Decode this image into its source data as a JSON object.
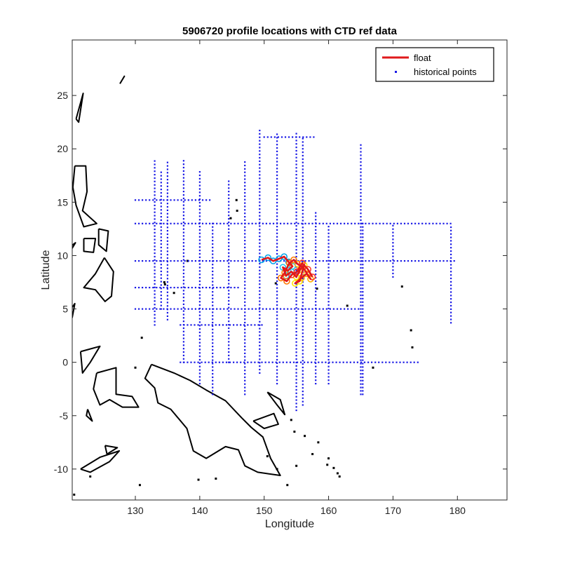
{
  "chart_data": {
    "type": "scatter",
    "title": "5906720 profile locations with CTD ref data",
    "xlabel": "Longitude",
    "ylabel": "Latitude",
    "xlim": [
      120.2,
      187.7
    ],
    "ylim": [
      -12.9,
      30.2
    ],
    "xticks": [
      130,
      140,
      150,
      160,
      170,
      180
    ],
    "yticks": [
      -10,
      -5,
      0,
      5,
      10,
      15,
      20,
      25
    ],
    "grid": false,
    "legend": {
      "placement": "top-right",
      "entries": [
        "float",
        "historical points"
      ]
    },
    "colors": {
      "float": "#e0191b",
      "historical": "#1a1ae6",
      "coast": "#000000",
      "rainbow": [
        "#00a2e8",
        "#22c6ee",
        "#ffe600",
        "#ffb000",
        "#ff7a00",
        "#ff3a2a"
      ]
    },
    "series": [
      {
        "name": "float",
        "mark": "line",
        "points": [
          [
            149.6,
            9.6
          ],
          [
            150.6,
            9.8
          ],
          [
            151.4,
            9.5
          ],
          [
            152.3,
            9.7
          ],
          [
            153.1,
            9.9
          ],
          [
            153.8,
            9.4
          ],
          [
            154.4,
            9.0
          ],
          [
            153.7,
            8.6
          ],
          [
            152.9,
            8.9
          ],
          [
            153.4,
            8.1
          ],
          [
            154.2,
            8.5
          ],
          [
            155.0,
            8.0
          ],
          [
            155.6,
            8.7
          ],
          [
            156.2,
            9.1
          ],
          [
            155.5,
            7.6
          ],
          [
            154.8,
            7.4
          ],
          [
            155.8,
            7.9
          ],
          [
            156.6,
            8.3
          ],
          [
            157.2,
            7.8
          ],
          [
            156.0,
            8.9
          ],
          [
            155.2,
            9.2
          ],
          [
            154.6,
            9.6
          ],
          [
            153.9,
            9.3
          ],
          [
            153.2,
            8.4
          ],
          [
            152.6,
            7.9
          ],
          [
            153.5,
            7.6
          ],
          [
            154.3,
            8.2
          ],
          [
            155.1,
            8.5
          ],
          [
            155.9,
            9.3
          ],
          [
            156.8,
            8.7
          ],
          [
            157.5,
            8.0
          ]
        ]
      },
      {
        "name": "historical points",
        "mark": "dot",
        "tracks": [
          {
            "kind": "h",
            "fixed": 13,
            "from": 130,
            "to": 179
          },
          {
            "kind": "h",
            "fixed": 9.5,
            "from": 130,
            "to": 180
          },
          {
            "kind": "h",
            "fixed": 5,
            "from": 130,
            "to": 165
          },
          {
            "kind": "h",
            "fixed": 0,
            "from": 137,
            "to": 174
          },
          {
            "kind": "h",
            "fixed": 15.2,
            "from": 130,
            "to": 142
          },
          {
            "kind": "h",
            "fixed": 7,
            "from": 130,
            "to": 146
          },
          {
            "kind": "h",
            "fixed": 3.5,
            "from": 137,
            "to": 150
          },
          {
            "kind": "h",
            "fixed": 21.1,
            "from": 150,
            "to": 158
          },
          {
            "kind": "v",
            "fixed": 133,
            "from": 3.5,
            "to": 19
          },
          {
            "kind": "v",
            "fixed": 135,
            "from": 4,
            "to": 19
          },
          {
            "kind": "v",
            "fixed": 137.5,
            "from": 0,
            "to": 19
          },
          {
            "kind": "v",
            "fixed": 140,
            "from": -2,
            "to": 18
          },
          {
            "kind": "v",
            "fixed": 142,
            "from": -3,
            "to": 13
          },
          {
            "kind": "v",
            "fixed": 144.5,
            "from": 0,
            "to": 17
          },
          {
            "kind": "v",
            "fixed": 147,
            "from": -3,
            "to": 19
          },
          {
            "kind": "v",
            "fixed": 149.3,
            "from": -1,
            "to": 22
          },
          {
            "kind": "v",
            "fixed": 152,
            "from": -2,
            "to": 21.5
          },
          {
            "kind": "v",
            "fixed": 155,
            "from": -4.5,
            "to": 21.5
          },
          {
            "kind": "v",
            "fixed": 156,
            "from": -4,
            "to": 21
          },
          {
            "kind": "v",
            "fixed": 158,
            "from": -2,
            "to": 14
          },
          {
            "kind": "v",
            "fixed": 160,
            "from": -2,
            "to": 13
          },
          {
            "kind": "v",
            "fixed": 165,
            "from": -3,
            "to": 20.5
          },
          {
            "kind": "v",
            "fixed": 165.3,
            "from": -3,
            "to": 13
          },
          {
            "kind": "v",
            "fixed": 170,
            "from": 8,
            "to": 13
          },
          {
            "kind": "v",
            "fixed": 179,
            "from": 3.7,
            "to": 12.7
          },
          {
            "kind": "v",
            "fixed": 134,
            "from": 5,
            "to": 18
          }
        ]
      }
    ],
    "coastlines": [
      [
        [
          121.5,
          -10.0
        ],
        [
          124.5,
          -8.9
        ],
        [
          127.5,
          -8.3
        ],
        [
          126.0,
          -9.3
        ],
        [
          123.0,
          -10.3
        ],
        [
          121.5,
          -10.0
        ]
      ],
      [
        [
          124.0,
          -1.0
        ],
        [
          127.0,
          -0.5
        ],
        [
          127.0,
          -3.0
        ],
        [
          129.5,
          -3.2
        ],
        [
          130.5,
          -4.2
        ],
        [
          128.0,
          -4.2
        ],
        [
          126.0,
          -3.5
        ],
        [
          124.5,
          -4.0
        ],
        [
          123.5,
          -2.5
        ],
        [
          124.0,
          -1.0
        ]
      ],
      [
        [
          121.5,
          1.0
        ],
        [
          124.5,
          1.5
        ],
        [
          123.0,
          0.0
        ],
        [
          121.8,
          -1.0
        ],
        [
          121.5,
          1.0
        ]
      ],
      [
        [
          132.5,
          -0.2
        ],
        [
          136.0,
          -1.0
        ],
        [
          138.5,
          -1.7
        ],
        [
          141.0,
          -2.6
        ],
        [
          144.0,
          -3.6
        ],
        [
          146.5,
          -5.2
        ],
        [
          148.0,
          -6.1
        ],
        [
          149.8,
          -7.0
        ],
        [
          151.0,
          -9.0
        ],
        [
          152.5,
          -10.6
        ],
        [
          149.0,
          -10.3
        ],
        [
          147.0,
          -9.7
        ],
        [
          146.0,
          -8.2
        ],
        [
          144.0,
          -7.9
        ],
        [
          141.0,
          -9.0
        ],
        [
          139.0,
          -8.3
        ],
        [
          138.0,
          -6.2
        ],
        [
          135.5,
          -4.4
        ],
        [
          133.5,
          -3.8
        ],
        [
          133.0,
          -2.4
        ],
        [
          131.5,
          -1.5
        ],
        [
          132.5,
          -0.2
        ]
      ],
      [
        [
          148.3,
          -5.5
        ],
        [
          151.5,
          -4.8
        ],
        [
          152.2,
          -5.8
        ],
        [
          150.0,
          -6.2
        ],
        [
          148.3,
          -5.5
        ]
      ],
      [
        [
          150.5,
          -2.8
        ],
        [
          152.5,
          -3.5
        ],
        [
          153.2,
          -4.9
        ],
        [
          152.0,
          -4.0
        ],
        [
          150.5,
          -2.8
        ]
      ],
      [
        [
          120.6,
          18.4
        ],
        [
          122.3,
          18.4
        ],
        [
          122.5,
          16.0
        ],
        [
          121.8,
          14.2
        ],
        [
          124.0,
          13.0
        ],
        [
          122.0,
          12.7
        ],
        [
          120.8,
          14.7
        ],
        [
          120.3,
          16.4
        ],
        [
          120.6,
          18.4
        ]
      ],
      [
        [
          122.0,
          11.6
        ],
        [
          123.8,
          11.6
        ],
        [
          123.5,
          10.3
        ],
        [
          122.0,
          10.4
        ],
        [
          122.0,
          11.6
        ]
      ],
      [
        [
          124.3,
          12.5
        ],
        [
          125.8,
          12.3
        ],
        [
          125.5,
          10.4
        ],
        [
          124.3,
          11.0
        ],
        [
          124.3,
          12.5
        ]
      ],
      [
        [
          125.2,
          9.8
        ],
        [
          126.6,
          8.5
        ],
        [
          126.3,
          6.2
        ],
        [
          125.3,
          5.7
        ],
        [
          123.8,
          6.8
        ],
        [
          122.0,
          7.0
        ],
        [
          123.8,
          8.3
        ],
        [
          125.2,
          9.8
        ]
      ],
      [
        [
          118.0,
          10.0
        ],
        [
          120.7,
          11.2
        ],
        [
          119.5,
          10.0
        ],
        [
          118.0,
          10.0
        ]
      ],
      [
        [
          120.8,
          22.8
        ],
        [
          121.9,
          25.2
        ],
        [
          121.2,
          22.5
        ],
        [
          120.8,
          22.8
        ]
      ],
      [
        [
          127.6,
          26.1
        ],
        [
          128.3,
          26.8
        ],
        [
          127.8,
          26.3
        ],
        [
          127.6,
          26.1
        ]
      ],
      [
        [
          125.3,
          -7.8
        ],
        [
          127.2,
          -8.0
        ],
        [
          125.6,
          -8.6
        ],
        [
          125.3,
          -7.8
        ]
      ],
      [
        [
          119.4,
          4.5
        ],
        [
          120.6,
          5.5
        ],
        [
          120.2,
          4.2
        ],
        [
          119.4,
          4.5
        ]
      ],
      [
        [
          122.6,
          -4.4
        ],
        [
          123.3,
          -5.5
        ],
        [
          122.4,
          -5.0
        ],
        [
          122.6,
          -4.4
        ]
      ]
    ],
    "islets": [
      [
        145.7,
        15.2
      ],
      [
        145.8,
        14.2
      ],
      [
        144.8,
        13.5
      ],
      [
        134.5,
        7.5
      ],
      [
        138.1,
        9.5
      ],
      [
        151.8,
        7.4
      ],
      [
        158.2,
        6.9
      ],
      [
        162.9,
        5.3
      ],
      [
        171.4,
        7.1
      ],
      [
        134.6,
        7.3
      ],
      [
        130.0,
        -0.5
      ],
      [
        131.0,
        2.3
      ],
      [
        136.0,
        6.5
      ],
      [
        154.7,
        -6.5
      ],
      [
        156.3,
        -6.9
      ],
      [
        158.4,
        -7.5
      ],
      [
        157.5,
        -8.6
      ],
      [
        159.8,
        -9.6
      ],
      [
        160.0,
        -9.0
      ],
      [
        160.8,
        -9.9
      ],
      [
        161.4,
        -10.4
      ],
      [
        166.9,
        -0.5
      ],
      [
        173.0,
        1.4
      ],
      [
        172.8,
        3.0
      ],
      [
        120.5,
        -12.4
      ],
      [
        123.0,
        -10.7
      ],
      [
        139.8,
        -11.0
      ],
      [
        142.5,
        -10.9
      ],
      [
        130.7,
        -11.5
      ],
      [
        152.0,
        -10.0
      ],
      [
        150.5,
        -8.8
      ],
      [
        153.6,
        -11.5
      ],
      [
        155.0,
        -9.7
      ],
      [
        161.7,
        -10.7
      ],
      [
        154.2,
        -5.4
      ]
    ]
  }
}
